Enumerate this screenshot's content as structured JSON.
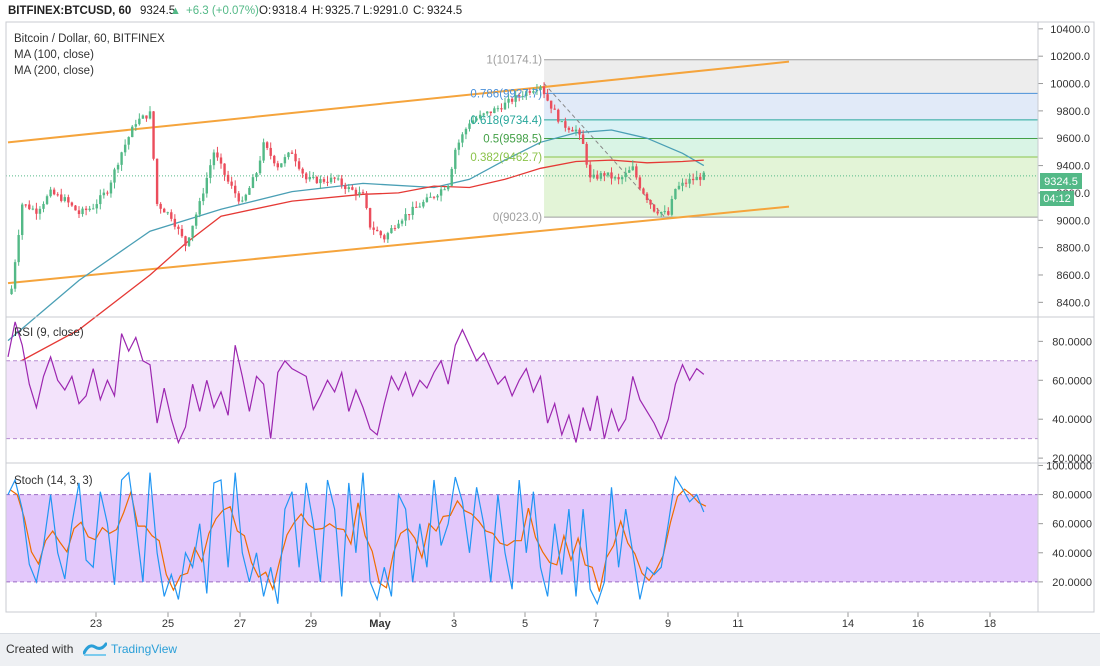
{
  "header": {
    "symbol": "BITFINEX:BTCUSD, 60",
    "last": "9324.5",
    "change": "+6.3 (+0.07%)",
    "ohlc": [
      {
        "k": "O:",
        "v": "9318.4"
      },
      {
        "k": "H:",
        "v": "9325.7"
      },
      {
        "k": "L:",
        "v": "9291.0"
      },
      {
        "k": "C:",
        "v": "9324.5"
      }
    ]
  },
  "legend": {
    "title": "Bitcoin / Dollar, 60, BITFINEX",
    "ma100": "MA (100, close)",
    "ma200": "MA (200, close)",
    "rsi": "RSI (9, close)",
    "stoch": "Stoch (14, 3, 3)"
  },
  "price_badge": {
    "price": "9324.5",
    "countdown": "04:12"
  },
  "footer": {
    "created_with": "Created with",
    "brand": "TradingView"
  },
  "colors": {
    "up": "#53b987",
    "down": "#eb4d5c",
    "ma100": "#4a9fb5",
    "ma200": "#e53935",
    "channel": "#f5a43c",
    "rsi": "#9c27b0",
    "rsi_band": "#f3e3fb",
    "stoch_k": "#2196f3",
    "stoch_d": "#ef6c00",
    "stoch_band": "#e3c8fb",
    "fib_0": "#eef5d6",
    "fib_382": "#d9f0c9",
    "fib_5": "#ccf0dc",
    "fib_618": "#cdeef2",
    "fib_786": "#d7e3f5",
    "fib_1": "#e7e7e7"
  },
  "chart_data": [
    {
      "type": "candlestick",
      "name": "price",
      "xlabels": [
        "23",
        "25",
        "27",
        "29",
        "May",
        "3",
        "5",
        "7",
        "9",
        "11",
        "14",
        "16",
        "18"
      ],
      "yticks": [
        "10400.0",
        "10200.0",
        "10000.0",
        "9800.0",
        "9600.0",
        "9400.0",
        "9200.0",
        "9000.0",
        "8800.0",
        "8600.0",
        "8400.0"
      ],
      "ylim": [
        8300,
        10450
      ],
      "anchors": [
        [
          0,
          8460
        ],
        [
          0.5,
          8500
        ],
        [
          2,
          9120
        ],
        [
          4,
          9070
        ],
        [
          6,
          9200
        ],
        [
          8,
          9150
        ],
        [
          10,
          9050
        ],
        [
          12,
          9100
        ],
        [
          14,
          9220
        ],
        [
          16,
          9500
        ],
        [
          18,
          9720
        ],
        [
          20,
          9780
        ],
        [
          21,
          9120
        ],
        [
          23,
          9030
        ],
        [
          25,
          8820
        ],
        [
          27,
          9120
        ],
        [
          29,
          9500
        ],
        [
          31,
          9280
        ],
        [
          33,
          9120
        ],
        [
          35,
          9350
        ],
        [
          36,
          9550
        ],
        [
          38,
          9400
        ],
        [
          40,
          9500
        ],
        [
          42,
          9300
        ],
        [
          44,
          9290
        ],
        [
          46,
          9300
        ],
        [
          48,
          9230
        ],
        [
          50,
          9180
        ],
        [
          51,
          8960
        ],
        [
          53,
          8870
        ],
        [
          55,
          9000
        ],
        [
          58,
          9110
        ],
        [
          60,
          9180
        ],
        [
          62,
          9270
        ],
        [
          63,
          9520
        ],
        [
          65,
          9720
        ],
        [
          67,
          9770
        ],
        [
          69,
          9820
        ],
        [
          71,
          9880
        ],
        [
          73,
          9940
        ],
        [
          75,
          9990
        ],
        [
          76,
          9880
        ],
        [
          78,
          9700
        ],
        [
          80,
          9660
        ],
        [
          81,
          9550
        ],
        [
          82,
          9300
        ],
        [
          84,
          9340
        ],
        [
          86,
          9290
        ],
        [
          88,
          9380
        ],
        [
          89,
          9250
        ],
        [
          91,
          9080
        ],
        [
          92,
          9060
        ],
        [
          93,
          9040
        ],
        [
          94,
          9230
        ],
        [
          96,
          9290
        ],
        [
          98,
          9324.5
        ]
      ],
      "ma100": [
        [
          0,
          8120
        ],
        [
          10,
          8560
        ],
        [
          20,
          8920
        ],
        [
          30,
          9080
        ],
        [
          40,
          9210
        ],
        [
          50,
          9270
        ],
        [
          60,
          9240
        ],
        [
          65,
          9300
        ],
        [
          70,
          9440
        ],
        [
          75,
          9570
        ],
        [
          80,
          9640
        ],
        [
          85,
          9660
        ],
        [
          90,
          9600
        ],
        [
          95,
          9490
        ],
        [
          98,
          9400
        ]
      ],
      "ma200": [
        [
          0,
          7920
        ],
        [
          10,
          8200
        ],
        [
          20,
          8600
        ],
        [
          25,
          8830
        ],
        [
          30,
          9030
        ],
        [
          40,
          9140
        ],
        [
          50,
          9190
        ],
        [
          55,
          9200
        ],
        [
          60,
          9250
        ],
        [
          65,
          9240
        ],
        [
          70,
          9300
        ],
        [
          75,
          9380
        ],
        [
          80,
          9430
        ],
        [
          85,
          9440
        ],
        [
          90,
          9420
        ],
        [
          95,
          9430
        ],
        [
          98,
          9440
        ]
      ],
      "channel_upper": [
        [
          0,
          9570
        ],
        [
          110,
          10160
        ]
      ],
      "channel_lower": [
        [
          0,
          8540
        ],
        [
          110,
          9100
        ]
      ],
      "fib_levels": [
        {
          "ratio": "1",
          "label": "1(10174.1)",
          "price": 10174.1
        },
        {
          "ratio": "0.786",
          "label": "0.786(9927.7)",
          "price": 9927.7
        },
        {
          "ratio": "0.618",
          "label": "0.618(9734.4)",
          "price": 9734.4
        },
        {
          "ratio": "0.5",
          "label": "0.5(9598.5)",
          "price": 9598.5
        },
        {
          "ratio": "0.382",
          "label": "0.382(9462.7)",
          "price": 9462.7
        },
        {
          "ratio": "0",
          "label": "0(9023.0)",
          "price": 9023.0
        }
      ]
    },
    {
      "type": "line",
      "name": "RSI (9, close)",
      "yticks": [
        "80.0000",
        "60.0000",
        "40.0000",
        "20.0000"
      ],
      "ylim": [
        18,
        92
      ],
      "band": [
        30,
        70
      ],
      "anchors": [
        [
          0,
          72
        ],
        [
          1,
          90
        ],
        [
          2,
          78
        ],
        [
          3,
          58
        ],
        [
          4,
          46
        ],
        [
          5,
          62
        ],
        [
          6,
          72
        ],
        [
          7,
          60
        ],
        [
          8,
          55
        ],
        [
          9,
          62
        ],
        [
          10,
          48
        ],
        [
          11,
          52
        ],
        [
          12,
          66
        ],
        [
          13,
          50
        ],
        [
          14,
          60
        ],
        [
          15,
          52
        ],
        [
          16,
          84
        ],
        [
          17,
          75
        ],
        [
          18,
          82
        ],
        [
          19,
          70
        ],
        [
          20,
          68
        ],
        [
          21,
          38
        ],
        [
          22,
          56
        ],
        [
          23,
          40
        ],
        [
          24,
          28
        ],
        [
          25,
          36
        ],
        [
          26,
          58
        ],
        [
          27,
          44
        ],
        [
          28,
          60
        ],
        [
          29,
          46
        ],
        [
          30,
          54
        ],
        [
          31,
          42
        ],
        [
          32,
          78
        ],
        [
          33,
          62
        ],
        [
          34,
          44
        ],
        [
          35,
          62
        ],
        [
          36,
          58
        ],
        [
          37,
          30
        ],
        [
          38,
          64
        ],
        [
          39,
          70
        ],
        [
          40,
          66
        ],
        [
          41,
          64
        ],
        [
          42,
          62
        ],
        [
          43,
          45
        ],
        [
          44,
          52
        ],
        [
          45,
          60
        ],
        [
          46,
          54
        ],
        [
          47,
          64
        ],
        [
          48,
          44
        ],
        [
          49,
          55
        ],
        [
          50,
          46
        ],
        [
          51,
          35
        ],
        [
          52,
          32
        ],
        [
          53,
          48
        ],
        [
          54,
          62
        ],
        [
          55,
          55
        ],
        [
          56,
          64
        ],
        [
          57,
          52
        ],
        [
          58,
          60
        ],
        [
          59,
          56
        ],
        [
          60,
          64
        ],
        [
          61,
          70
        ],
        [
          62,
          58
        ],
        [
          63,
          78
        ],
        [
          64,
          86
        ],
        [
          65,
          78
        ],
        [
          66,
          70
        ],
        [
          67,
          74
        ],
        [
          68,
          66
        ],
        [
          69,
          58
        ],
        [
          70,
          62
        ],
        [
          71,
          52
        ],
        [
          72,
          60
        ],
        [
          73,
          66
        ],
        [
          74,
          54
        ],
        [
          75,
          62
        ],
        [
          76,
          38
        ],
        [
          77,
          48
        ],
        [
          78,
          32
        ],
        [
          79,
          42
        ],
        [
          80,
          28
        ],
        [
          81,
          46
        ],
        [
          82,
          34
        ],
        [
          83,
          52
        ],
        [
          84,
          30
        ],
        [
          85,
          45
        ],
        [
          86,
          34
        ],
        [
          87,
          40
        ],
        [
          88,
          62
        ],
        [
          89,
          50
        ],
        [
          90,
          44
        ],
        [
          91,
          38
        ],
        [
          92,
          30
        ],
        [
          93,
          40
        ],
        [
          94,
          58
        ],
        [
          95,
          68
        ],
        [
          96,
          60
        ],
        [
          97,
          66
        ],
        [
          98,
          63
        ]
      ]
    },
    {
      "type": "line",
      "name": "Stoch (14, 3, 3)",
      "yticks": [
        "100.0000",
        "80.0000",
        "60.0000",
        "40.0000",
        "20.0000"
      ],
      "ylim": [
        0,
        101
      ],
      "band": [
        20,
        80
      ],
      "k": [
        [
          0,
          80
        ],
        [
          1,
          90
        ],
        [
          2,
          70
        ],
        [
          3,
          32
        ],
        [
          4,
          20
        ],
        [
          5,
          45
        ],
        [
          6,
          80
        ],
        [
          7,
          40
        ],
        [
          8,
          22
        ],
        [
          9,
          60
        ],
        [
          10,
          88
        ],
        [
          11,
          35
        ],
        [
          12,
          30
        ],
        [
          13,
          82
        ],
        [
          14,
          60
        ],
        [
          15,
          18
        ],
        [
          16,
          90
        ],
        [
          17,
          95
        ],
        [
          18,
          60
        ],
        [
          19,
          20
        ],
        [
          20,
          95
        ],
        [
          21,
          40
        ],
        [
          22,
          10
        ],
        [
          23,
          25
        ],
        [
          24,
          8
        ],
        [
          25,
          40
        ],
        [
          26,
          30
        ],
        [
          27,
          60
        ],
        [
          28,
          12
        ],
        [
          29,
          88
        ],
        [
          30,
          90
        ],
        [
          31,
          30
        ],
        [
          32,
          95
        ],
        [
          33,
          40
        ],
        [
          34,
          20
        ],
        [
          35,
          40
        ],
        [
          36,
          10
        ],
        [
          37,
          30
        ],
        [
          38,
          5
        ],
        [
          39,
          70
        ],
        [
          40,
          82
        ],
        [
          41,
          30
        ],
        [
          42,
          88
        ],
        [
          43,
          60
        ],
        [
          44,
          20
        ],
        [
          45,
          90
        ],
        [
          46,
          70
        ],
        [
          47,
          10
        ],
        [
          48,
          88
        ],
        [
          49,
          40
        ],
        [
          50,
          95
        ],
        [
          51,
          20
        ],
        [
          52,
          8
        ],
        [
          53,
          30
        ],
        [
          54,
          10
        ],
        [
          55,
          80
        ],
        [
          56,
          70
        ],
        [
          57,
          20
        ],
        [
          58,
          60
        ],
        [
          59,
          30
        ],
        [
          60,
          90
        ],
        [
          61,
          45
        ],
        [
          62,
          60
        ],
        [
          63,
          92
        ],
        [
          64,
          75
        ],
        [
          65,
          40
        ],
        [
          66,
          85
        ],
        [
          67,
          60
        ],
        [
          68,
          20
        ],
        [
          69,
          80
        ],
        [
          70,
          40
        ],
        [
          71,
          15
        ],
        [
          72,
          90
        ],
        [
          73,
          40
        ],
        [
          74,
          82
        ],
        [
          75,
          30
        ],
        [
          76,
          10
        ],
        [
          77,
          60
        ],
        [
          78,
          25
        ],
        [
          79,
          70
        ],
        [
          80,
          10
        ],
        [
          81,
          70
        ],
        [
          82,
          15
        ],
        [
          83,
          5
        ],
        [
          84,
          20
        ],
        [
          85,
          85
        ],
        [
          86,
          30
        ],
        [
          87,
          70
        ],
        [
          88,
          40
        ],
        [
          89,
          8
        ],
        [
          90,
          30
        ],
        [
          91,
          25
        ],
        [
          92,
          30
        ],
        [
          93,
          60
        ],
        [
          94,
          92
        ],
        [
          95,
          84
        ],
        [
          96,
          75
        ],
        [
          97,
          80
        ],
        [
          98,
          68
        ]
      ]
    }
  ]
}
